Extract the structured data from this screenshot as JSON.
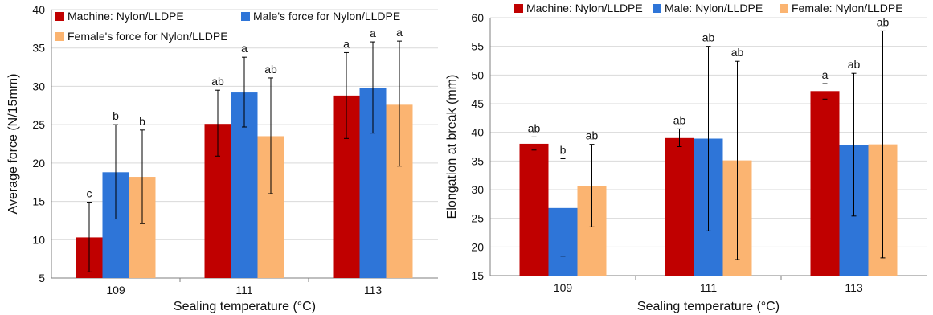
{
  "colors": {
    "machine": "#c00000",
    "male": "#2e75d8",
    "female": "#fbb471",
    "grid": "#d9d9d9",
    "axis": "#7f7f7f",
    "errorbar": "#000000"
  },
  "chart_data": [
    {
      "type": "bar",
      "title": "",
      "xlabel": "Sealing temperature (°C)",
      "ylabel": "Average force (N/15mm)",
      "ylim": [
        5,
        40
      ],
      "yticks": [
        "5",
        "10",
        "15",
        "20",
        "25",
        "30",
        "35",
        "40"
      ],
      "grid": true,
      "legend_position": "top",
      "categories": [
        "109",
        "111",
        "113"
      ],
      "series": [
        {
          "name": "Machine: Nylon/LLDPE",
          "color": "#c00000",
          "values": [
            10.3,
            25.1,
            28.8
          ],
          "err_low": [
            5.8,
            20.9,
            23.2
          ],
          "err_high": [
            14.9,
            29.5,
            34.4
          ],
          "letters": [
            "c",
            "ab",
            "a"
          ]
        },
        {
          "name": "Male's force for Nylon/LLDPE",
          "color": "#2e75d8",
          "values": [
            18.8,
            29.2,
            29.8
          ],
          "err_low": [
            12.7,
            24.7,
            23.9
          ],
          "err_high": [
            25.0,
            33.8,
            35.8
          ],
          "letters": [
            "b",
            "a",
            "a"
          ]
        },
        {
          "name": "Female's force for Nylon/LLDPE",
          "color": "#fbb471",
          "values": [
            18.2,
            23.5,
            27.6
          ],
          "err_low": [
            12.1,
            16.0,
            19.6
          ],
          "err_high": [
            24.3,
            31.1,
            35.9
          ],
          "letters": [
            "b",
            "ab",
            "a"
          ]
        }
      ]
    },
    {
      "type": "bar",
      "title": "",
      "xlabel": "Sealing temperature (°C)",
      "ylabel": "Elongation at break (mm)",
      "ylim": [
        15,
        60
      ],
      "yticks": [
        "15",
        "20",
        "25",
        "30",
        "35",
        "40",
        "45",
        "50",
        "55",
        "60"
      ],
      "grid": true,
      "legend_position": "top",
      "categories": [
        "109",
        "111",
        "113"
      ],
      "series": [
        {
          "name": "Machine: Nylon/LLDPE",
          "color": "#c00000",
          "values": [
            38.0,
            39.0,
            47.2
          ],
          "err_low": [
            36.9,
            37.5,
            45.8
          ],
          "err_high": [
            39.2,
            40.6,
            48.5
          ],
          "letters": [
            "ab",
            "ab",
            "a"
          ]
        },
        {
          "name": "Male: Nylon/LLDPE",
          "color": "#2e75d8",
          "values": [
            26.8,
            38.9,
            37.8
          ],
          "err_low": [
            18.4,
            22.8,
            25.4
          ],
          "err_high": [
            35.4,
            55.0,
            50.3
          ],
          "letters": [
            "b",
            "ab",
            "ab"
          ]
        },
        {
          "name": "Female: Nylon/LLDPE",
          "color": "#fbb471",
          "values": [
            30.6,
            35.1,
            37.9
          ],
          "err_low": [
            23.5,
            17.8,
            18.1
          ],
          "err_high": [
            37.9,
            52.4,
            57.7
          ],
          "letters": [
            "ab",
            "ab",
            "ab"
          ]
        }
      ]
    }
  ]
}
